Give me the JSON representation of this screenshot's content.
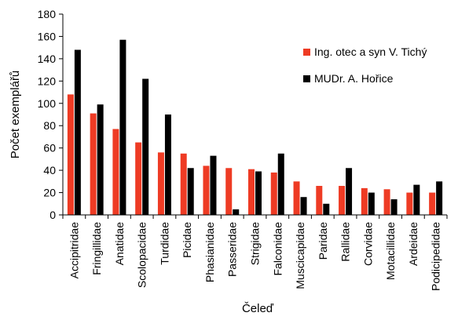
{
  "chart_data": {
    "type": "bar",
    "categories": [
      "Accipitridae",
      "Fringillidae",
      "Anatidae",
      "Scolopacidae",
      "Turdidae",
      "Picidae",
      "Phasianidae",
      "Passeridae",
      "Strigidae",
      "Falconidae",
      "Muscicapidae",
      "Paridae",
      "Rallidae",
      "Corvidae",
      "Motacillidae",
      "Ardeidae",
      "Podicipedidae"
    ],
    "series": [
      {
        "name": "Ing. otec a syn V. Tichý",
        "color": "#ee3b24",
        "values": [
          108,
          91,
          77,
          65,
          56,
          55,
          44,
          42,
          41,
          38,
          30,
          26,
          26,
          24,
          23,
          20,
          20
        ]
      },
      {
        "name": "MUDr. A. Hořice",
        "color": "#000000",
        "values": [
          148,
          99,
          157,
          122,
          90,
          42,
          53,
          5,
          39,
          55,
          16,
          10,
          42,
          20,
          14,
          27,
          30
        ]
      }
    ],
    "xlabel": "Čeleď",
    "ylabel": "Počet exemplářů",
    "ylim": [
      0,
      180
    ],
    "yticks": [
      0,
      20,
      40,
      60,
      80,
      100,
      120,
      140,
      160,
      180
    ],
    "grid": false,
    "legend_position": "right"
  }
}
